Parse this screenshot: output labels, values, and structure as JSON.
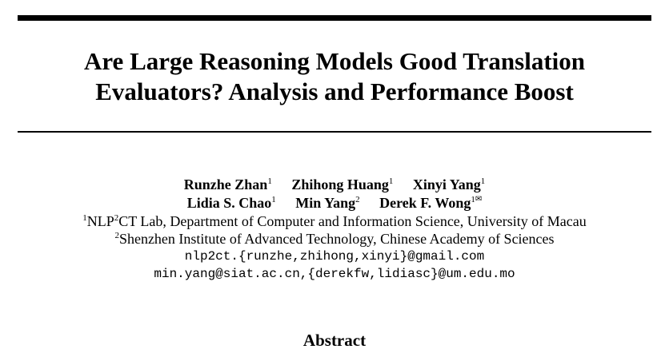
{
  "paper": {
    "title_line1": "Are Large Reasoning Models Good Translation",
    "title_line2": "Evaluators? Analysis and Performance Boost",
    "authors": [
      {
        "name": "Runzhe Zhan",
        "aff": "1"
      },
      {
        "name": "Zhihong Huang",
        "aff": "1"
      },
      {
        "name": "Xinyi Yang",
        "aff": "1"
      },
      {
        "name": "Lidia S. Chao",
        "aff": "1"
      },
      {
        "name": "Min Yang",
        "aff": "2"
      },
      {
        "name": "Derek F. Wong",
        "aff": "1",
        "mark": "✉"
      }
    ],
    "affiliations": [
      {
        "num": "1",
        "pre": "NLP",
        "num2": "2",
        "text": "CT Lab, Department of Computer and Information Science, University of Macau"
      },
      {
        "num": "2",
        "text": "Shenzhen Institute of Advanced Technology, Chinese Academy of Sciences"
      }
    ],
    "emails": [
      "nlp2ct.{runzhe,zhihong,xinyi}@gmail.com",
      "min.yang@siat.ac.cn,{derekfw,lidiasc}@um.edu.mo"
    ],
    "abstract_heading": "Abstract"
  }
}
